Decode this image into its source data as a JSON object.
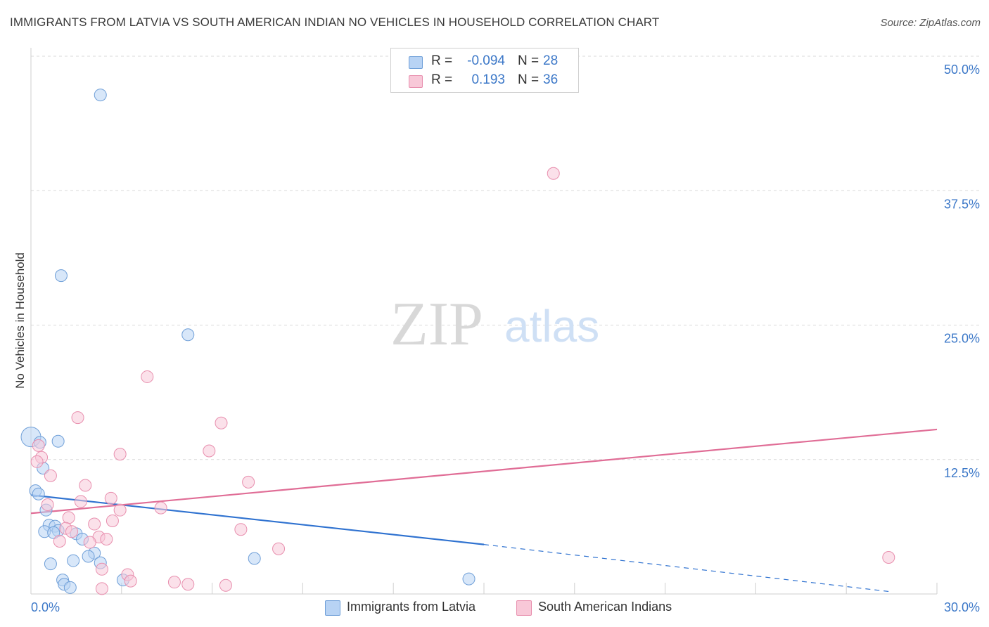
{
  "title": "IMMIGRANTS FROM LATVIA VS SOUTH AMERICAN INDIAN NO VEHICLES IN HOUSEHOLD CORRELATION CHART",
  "source": "Source: ZipAtlas.com",
  "watermark": {
    "zip": "ZIP",
    "atlas": "atlas"
  },
  "stats": [
    {
      "label": "R =",
      "r": "-0.094",
      "n_label": "N =",
      "n": "28",
      "fill": "#b8d3f4",
      "stroke": "#6f9fd8"
    },
    {
      "label": "R =",
      "r": "0.193",
      "n_label": "N =",
      "n": "36",
      "fill": "#f8c8d8",
      "stroke": "#e88fae"
    }
  ],
  "legend": [
    {
      "label": "Immigrants from Latvia",
      "fill": "#b8d3f4",
      "stroke": "#6f9fd8"
    },
    {
      "label": "South American Indians",
      "fill": "#f8c8d8",
      "stroke": "#e88fae"
    }
  ],
  "chart_data": {
    "type": "scatter",
    "title": "IMMIGRANTS FROM LATVIA VS SOUTH AMERICAN INDIAN NO VEHICLES IN HOUSEHOLD CORRELATION CHART",
    "xlabel": "",
    "ylabel": "No Vehicles in Household",
    "xlim": [
      0,
      30
    ],
    "ylim": [
      0,
      50
    ],
    "x_tick_labels": [
      "0.0%",
      "30.0%"
    ],
    "y_ticks": [
      12.5,
      25.0,
      37.5,
      50.0
    ],
    "y_tick_labels": [
      "12.5%",
      "25.0%",
      "37.5%",
      "50.0%"
    ],
    "grid": true,
    "series": [
      {
        "name": "Immigrants from Latvia",
        "color": "#6f9fd8",
        "fill": "#b8d3f4",
        "trend": {
          "x0": 0,
          "y0": 9.2,
          "x1": 15,
          "y1": 4.6,
          "dash_to_x": 28.5,
          "dash_to_y": 0.2,
          "color": "#2f72d0"
        },
        "points": [
          {
            "x": 2.3,
            "y": 46.4
          },
          {
            "x": 1.0,
            "y": 29.6
          },
          {
            "x": 5.2,
            "y": 24.1
          },
          {
            "x": 0.0,
            "y": 14.6
          },
          {
            "x": 0.3,
            "y": 14.1
          },
          {
            "x": 0.9,
            "y": 14.2
          },
          {
            "x": 0.4,
            "y": 11.7
          },
          {
            "x": 0.15,
            "y": 9.6
          },
          {
            "x": 0.25,
            "y": 9.3
          },
          {
            "x": 0.5,
            "y": 7.8
          },
          {
            "x": 0.6,
            "y": 6.4
          },
          {
            "x": 0.8,
            "y": 6.3
          },
          {
            "x": 0.45,
            "y": 5.8
          },
          {
            "x": 0.9,
            "y": 5.9
          },
          {
            "x": 0.75,
            "y": 5.7
          },
          {
            "x": 1.5,
            "y": 5.6
          },
          {
            "x": 1.7,
            "y": 5.1
          },
          {
            "x": 2.1,
            "y": 3.8
          },
          {
            "x": 1.9,
            "y": 3.5
          },
          {
            "x": 2.3,
            "y": 2.9
          },
          {
            "x": 1.4,
            "y": 3.1
          },
          {
            "x": 0.65,
            "y": 2.8
          },
          {
            "x": 7.4,
            "y": 3.3
          },
          {
            "x": 14.5,
            "y": 1.4
          },
          {
            "x": 1.05,
            "y": 1.3
          },
          {
            "x": 1.1,
            "y": 0.9
          },
          {
            "x": 1.3,
            "y": 0.6
          },
          {
            "x": 3.05,
            "y": 1.3
          }
        ]
      },
      {
        "name": "South American Indians",
        "color": "#e88fae",
        "fill": "#f8c8d8",
        "trend": {
          "x0": 0,
          "y0": 7.5,
          "x1": 30,
          "y1": 15.3,
          "color": "#e06d96"
        },
        "points": [
          {
            "x": 17.3,
            "y": 39.1
          },
          {
            "x": 3.85,
            "y": 20.2
          },
          {
            "x": 1.55,
            "y": 16.4
          },
          {
            "x": 6.3,
            "y": 15.9
          },
          {
            "x": 0.25,
            "y": 13.8
          },
          {
            "x": 5.9,
            "y": 13.3
          },
          {
            "x": 2.95,
            "y": 13.0
          },
          {
            "x": 0.35,
            "y": 12.7
          },
          {
            "x": 0.2,
            "y": 12.3
          },
          {
            "x": 0.65,
            "y": 11.0
          },
          {
            "x": 7.2,
            "y": 10.4
          },
          {
            "x": 1.8,
            "y": 10.1
          },
          {
            "x": 2.65,
            "y": 8.9
          },
          {
            "x": 1.65,
            "y": 8.6
          },
          {
            "x": 0.55,
            "y": 8.3
          },
          {
            "x": 2.95,
            "y": 7.8
          },
          {
            "x": 4.3,
            "y": 8.0
          },
          {
            "x": 1.25,
            "y": 7.1
          },
          {
            "x": 2.7,
            "y": 6.8
          },
          {
            "x": 2.1,
            "y": 6.5
          },
          {
            "x": 1.15,
            "y": 6.1
          },
          {
            "x": 6.95,
            "y": 6.0
          },
          {
            "x": 1.35,
            "y": 5.8
          },
          {
            "x": 2.25,
            "y": 5.3
          },
          {
            "x": 2.5,
            "y": 5.1
          },
          {
            "x": 1.95,
            "y": 4.8
          },
          {
            "x": 0.95,
            "y": 4.9
          },
          {
            "x": 8.2,
            "y": 4.2
          },
          {
            "x": 2.35,
            "y": 2.3
          },
          {
            "x": 3.2,
            "y": 1.8
          },
          {
            "x": 3.3,
            "y": 1.2
          },
          {
            "x": 4.75,
            "y": 1.1
          },
          {
            "x": 5.2,
            "y": 0.9
          },
          {
            "x": 6.45,
            "y": 0.8
          },
          {
            "x": 28.4,
            "y": 3.4
          },
          {
            "x": 2.35,
            "y": 0.5
          }
        ]
      }
    ]
  }
}
